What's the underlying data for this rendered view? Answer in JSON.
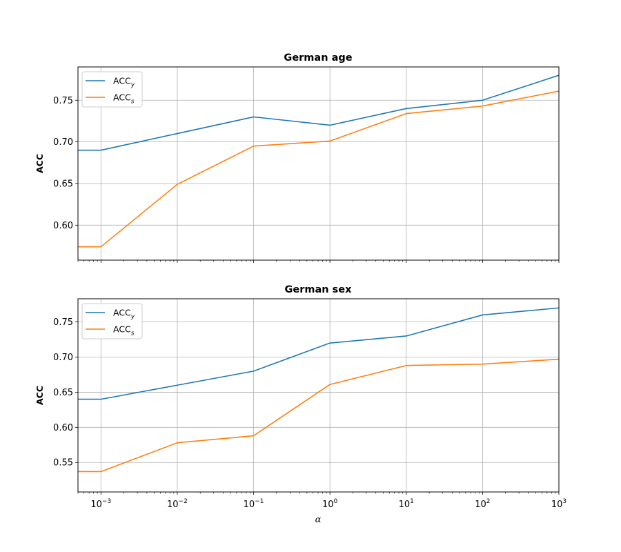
{
  "chart_data": [
    {
      "type": "line",
      "title": "German age",
      "xlabel": "",
      "ylabel": "ACC",
      "xscale": "log",
      "xlim": [
        0.0005,
        1000
      ],
      "ylim": [
        0.558,
        0.79
      ],
      "yticks": [
        "0.60",
        "0.65",
        "0.70",
        "0.75"
      ],
      "grid": true,
      "legend_position": "upper left",
      "x": [
        0.0005,
        0.001,
        0.01,
        0.1,
        1,
        10,
        100,
        1000
      ],
      "series": [
        {
          "name": "ACC",
          "subscript": "y",
          "color": "#1f77b4",
          "values": [
            0.69,
            0.69,
            0.71,
            0.73,
            0.72,
            0.74,
            0.75,
            0.78
          ]
        },
        {
          "name": "ACC",
          "subscript": "s",
          "color": "#ff7f0e",
          "values": [
            0.574,
            0.574,
            0.649,
            0.695,
            0.701,
            0.734,
            0.743,
            0.761
          ]
        }
      ]
    },
    {
      "type": "line",
      "title": "German sex",
      "xlabel": "α",
      "ylabel": "ACC",
      "xscale": "log",
      "xlim": [
        0.0005,
        1000
      ],
      "ylim": [
        0.508,
        0.783
      ],
      "yticks": [
        "0.55",
        "0.60",
        "0.65",
        "0.70",
        "0.75"
      ],
      "xticks": [
        {
          "base": "10",
          "exp": "−3"
        },
        {
          "base": "10",
          "exp": "−2"
        },
        {
          "base": "10",
          "exp": "−1"
        },
        {
          "base": "10",
          "exp": "0"
        },
        {
          "base": "10",
          "exp": "1"
        },
        {
          "base": "10",
          "exp": "2"
        },
        {
          "base": "10",
          "exp": "3"
        }
      ],
      "grid": true,
      "legend_position": "upper left",
      "x": [
        0.0005,
        0.001,
        0.01,
        0.1,
        1,
        10,
        100,
        1000
      ],
      "series": [
        {
          "name": "ACC",
          "subscript": "y",
          "color": "#1f77b4",
          "values": [
            0.64,
            0.64,
            0.66,
            0.68,
            0.72,
            0.73,
            0.76,
            0.77
          ]
        },
        {
          "name": "ACC",
          "subscript": "s",
          "color": "#ff7f0e",
          "values": [
            0.537,
            0.537,
            0.578,
            0.588,
            0.661,
            0.688,
            0.69,
            0.697
          ]
        }
      ]
    }
  ]
}
